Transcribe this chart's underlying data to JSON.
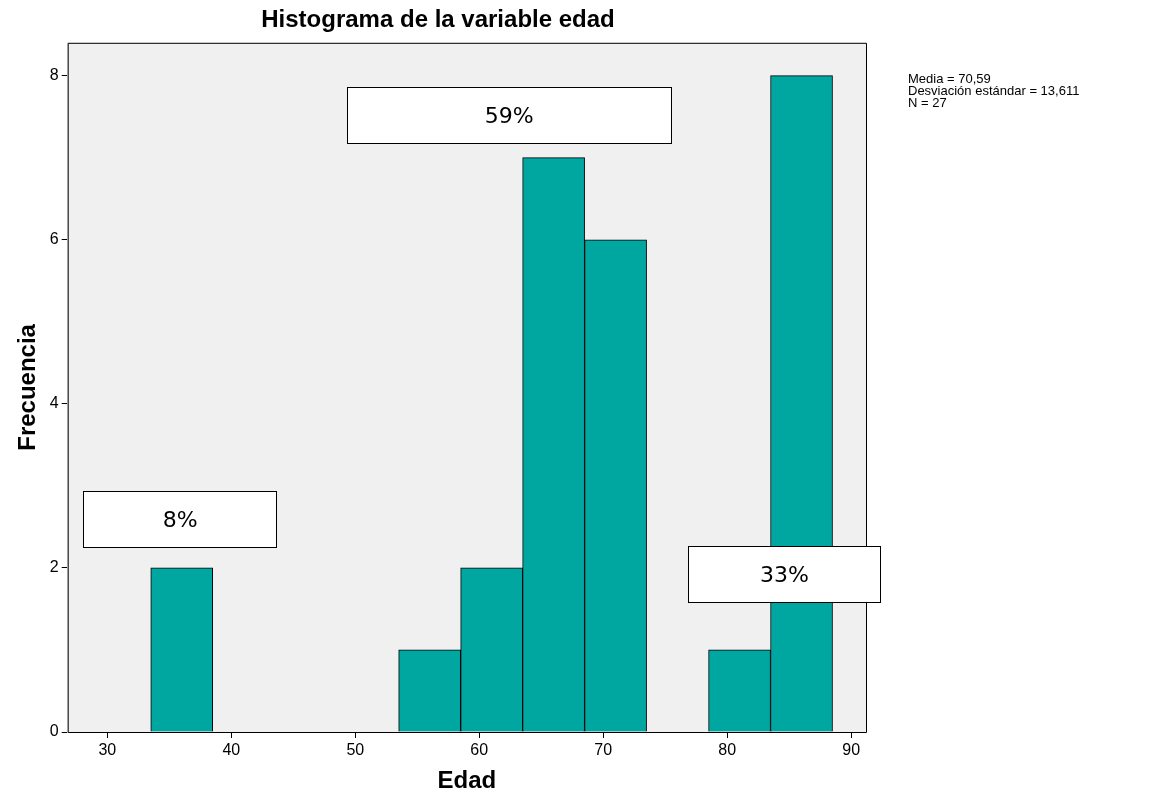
{
  "chart_data": {
    "type": "histogram",
    "title": "Histograma de la variable edad",
    "xlabel": "Edad",
    "ylabel": "Frecuencia",
    "bins": [
      33.5,
      38.5,
      43.5,
      48.5,
      53.5,
      58.5,
      63.5,
      68.5,
      73.5,
      78.5,
      83.5,
      88.5
    ],
    "values": [
      2,
      0,
      0,
      0,
      1,
      2,
      7,
      6,
      0,
      1,
      8
    ],
    "color": "#00a6a0",
    "xlim": [
      26.8,
      91.2
    ],
    "xticks": [
      30,
      40,
      50,
      60,
      70,
      80,
      90
    ],
    "ylim": [
      0,
      8.4
    ],
    "yticks": [
      0,
      2,
      4,
      6,
      8
    ],
    "grid": false,
    "legend": false,
    "annotations": [
      "8%",
      "59%",
      "33%",
      "Media = 70,59",
      "Desviación estándar = 13,611",
      "N = 27"
    ]
  }
}
